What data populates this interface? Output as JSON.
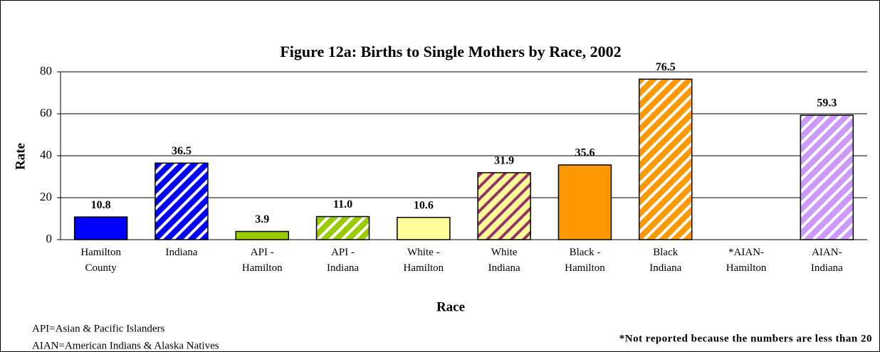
{
  "chart_data": {
    "type": "bar",
    "title": "Figure 12a:  Births to Single Mothers by Race, 2002",
    "y_label": "Rate",
    "x_label": "Race",
    "categories": [
      "Hamilton\nCounty",
      "Indiana",
      "API -\nHamilton",
      "API  -\nIndiana",
      "White -\nHamilton",
      "White\nIndiana",
      "Black -\nHamilton",
      "Black\nIndiana",
      "*AIAN-\nHamilton",
      "AIAN-\nIndiana"
    ],
    "values": [
      10.8,
      36.5,
      3.9,
      11.0,
      10.6,
      31.9,
      35.6,
      76.5,
      null,
      59.3
    ],
    "value_labels": [
      "10.8",
      "36.5",
      "3.9",
      "11.0",
      "10.6",
      "31.9",
      "35.6",
      "76.5",
      null,
      "59.3"
    ],
    "colors": [
      "#0000ff",
      "#0000ff",
      "#99cc00",
      "#99cc00",
      "#ffff99",
      "#ffff99",
      "#ff9900",
      "#ff9900",
      "#cc99ff",
      "#cc99ff"
    ],
    "stripe_colors": [
      null,
      "#ffffff",
      null,
      "#ffffff",
      null,
      "#993366",
      null,
      "#ffffff",
      null,
      "#ffffff"
    ],
    "ylim": [
      0,
      80
    ],
    "yticks": [
      0,
      20,
      40,
      60,
      80
    ],
    "grid": true,
    "notes": [
      "API=Asian & Pacific Islanders",
      "AIAN=American Indians & Alaska Natives"
    ],
    "footnote": "*Not reported because the numbers are less than 20"
  }
}
